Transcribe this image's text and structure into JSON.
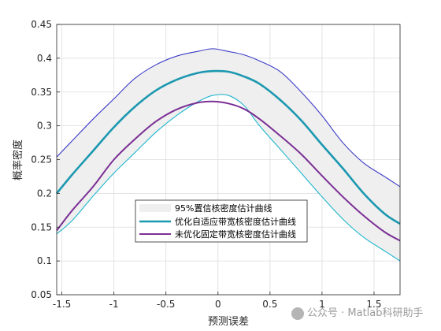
{
  "chart_data": {
    "type": "line",
    "title": "",
    "xlabel": "预测误差",
    "ylabel": "概率密度",
    "xlim": [
      -1.55,
      1.75
    ],
    "ylim": [
      0.05,
      0.45
    ],
    "xticks": [
      -1.5,
      -1,
      -0.5,
      0,
      0.5,
      1,
      1.5
    ],
    "xtick_labels": [
      "-1.5",
      "-1",
      "-0.5",
      "0",
      "0.5",
      "1",
      "1.5"
    ],
    "yticks": [
      0.05,
      0.1,
      0.15,
      0.2,
      0.25,
      0.3,
      0.35,
      0.4,
      0.45
    ],
    "ytick_labels": [
      "0.05",
      "0.1",
      "0.15",
      "0.2",
      "0.25",
      "0.3",
      "0.35",
      "0.4",
      "0.45"
    ],
    "grid": true,
    "legend_position": "lower-center",
    "band": {
      "name": "95%置信核密度估计曲线",
      "color": "#efefef",
      "x": [
        -1.55,
        -1.4,
        -1.2,
        -1.0,
        -0.8,
        -0.6,
        -0.4,
        -0.2,
        -0.05,
        0.1,
        0.25,
        0.4,
        0.6,
        0.8,
        1.0,
        1.2,
        1.4,
        1.6,
        1.75
      ],
      "upper": [
        0.254,
        0.278,
        0.31,
        0.34,
        0.37,
        0.39,
        0.403,
        0.41,
        0.414,
        0.41,
        0.405,
        0.396,
        0.38,
        0.35,
        0.315,
        0.275,
        0.245,
        0.225,
        0.21
      ],
      "lower": [
        0.14,
        0.16,
        0.196,
        0.23,
        0.26,
        0.29,
        0.315,
        0.335,
        0.345,
        0.345,
        0.33,
        0.3,
        0.265,
        0.23,
        0.195,
        0.162,
        0.135,
        0.115,
        0.1
      ],
      "upper_color": "#3b3bc8",
      "lower_color": "#1fb6cc"
    },
    "series": [
      {
        "name": "优化自适应带宽核密度估计曲线",
        "color": "#1b98b0",
        "x": [
          -1.55,
          -1.4,
          -1.2,
          -1.0,
          -0.8,
          -0.6,
          -0.4,
          -0.2,
          -0.05,
          0.1,
          0.25,
          0.4,
          0.6,
          0.8,
          1.0,
          1.2,
          1.4,
          1.6,
          1.75
        ],
        "y": [
          0.2,
          0.228,
          0.263,
          0.298,
          0.328,
          0.352,
          0.368,
          0.378,
          0.381,
          0.38,
          0.373,
          0.362,
          0.338,
          0.308,
          0.272,
          0.237,
          0.2,
          0.17,
          0.155
        ]
      },
      {
        "name": "未优化固定带宽核密度估计曲线",
        "color": "#7b2f95",
        "x": [
          -1.55,
          -1.4,
          -1.2,
          -1.0,
          -0.8,
          -0.6,
          -0.4,
          -0.2,
          -0.05,
          0.1,
          0.25,
          0.4,
          0.6,
          0.8,
          1.0,
          1.2,
          1.4,
          1.6,
          1.75
        ],
        "y": [
          0.145,
          0.175,
          0.21,
          0.25,
          0.28,
          0.306,
          0.324,
          0.334,
          0.336,
          0.333,
          0.325,
          0.31,
          0.285,
          0.258,
          0.226,
          0.195,
          0.167,
          0.143,
          0.13
        ]
      }
    ]
  },
  "watermark": "公众号 · Matlab科研助手"
}
